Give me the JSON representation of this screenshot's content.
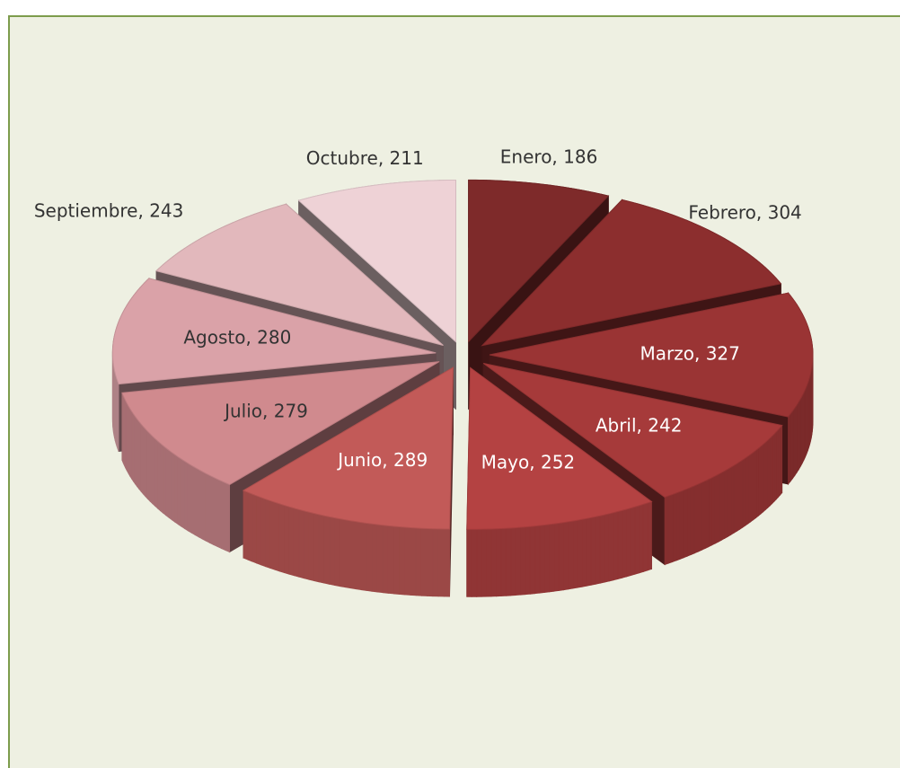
{
  "chart_data": {
    "type": "pie3d",
    "values": [
      186,
      304,
      327,
      242,
      252,
      289,
      279,
      280,
      243,
      211
    ],
    "value_labels": [
      "Enero, 186",
      "Febrero, 304",
      "Marzo, 327",
      "Abril, 242",
      "Mayo, 252",
      "Junio, 289",
      "Julio, 279",
      "Agosto, 280",
      "Septiembre, 243",
      "Octubre, 211"
    ],
    "colors": [
      "#7e2a2a",
      "#8c2e2e",
      "#9a3434",
      "#a63a3a",
      "#b44242",
      "#c25a58",
      "#d08a8e",
      "#daa2a8",
      "#e2b8bc",
      "#eed2d6"
    ]
  }
}
